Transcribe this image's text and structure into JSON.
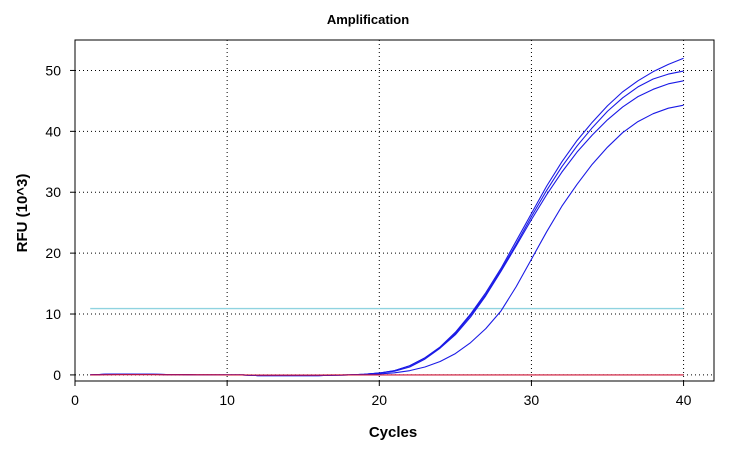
{
  "chart_data": {
    "type": "line",
    "title": "Amplification",
    "xlabel": "Cycles",
    "ylabel": "RFU (10^3)",
    "xlim": [
      0,
      42
    ],
    "ylim": [
      -1,
      55
    ],
    "xticks": [
      0,
      10,
      20,
      30,
      40
    ],
    "yticks": [
      0,
      10,
      20,
      30,
      40,
      50
    ],
    "grid": true,
    "threshold": {
      "value": 10.9,
      "x_range": [
        1,
        40
      ],
      "color": "#8fd3e0"
    },
    "x": [
      1,
      2,
      3,
      4,
      5,
      6,
      7,
      8,
      9,
      10,
      11,
      12,
      13,
      14,
      15,
      16,
      17,
      18,
      19,
      20,
      21,
      22,
      23,
      24,
      25,
      26,
      27,
      28,
      29,
      30,
      31,
      32,
      33,
      34,
      35,
      36,
      37,
      38,
      39,
      40
    ],
    "series": [
      {
        "color": "#1a1ae6",
        "values": [
          0.0,
          0.1,
          0.15,
          0.1,
          0.1,
          0.05,
          0.05,
          0.0,
          0.0,
          0.0,
          0.0,
          -0.1,
          -0.1,
          -0.1,
          -0.1,
          -0.1,
          -0.05,
          0.0,
          0.1,
          0.3,
          0.7,
          1.5,
          2.8,
          4.6,
          7.0,
          10.0,
          13.5,
          17.5,
          22.0,
          26.5,
          31.0,
          35.0,
          38.5,
          41.5,
          44.2,
          46.5,
          48.3,
          49.8,
          51.0,
          52.0
        ]
      },
      {
        "color": "#1a1ae6",
        "values": [
          0.0,
          0.1,
          0.15,
          0.1,
          0.1,
          0.05,
          0.05,
          0.0,
          0.0,
          0.0,
          0.0,
          -0.1,
          -0.1,
          -0.1,
          -0.1,
          -0.1,
          -0.05,
          0.0,
          0.1,
          0.3,
          0.7,
          1.5,
          2.8,
          4.5,
          6.8,
          9.8,
          13.2,
          17.2,
          21.5,
          26.0,
          30.3,
          34.2,
          37.6,
          40.6,
          43.3,
          45.5,
          47.3,
          48.6,
          49.4,
          49.9
        ]
      },
      {
        "color": "#1a1ae6",
        "values": [
          0.0,
          0.1,
          0.15,
          0.1,
          0.1,
          0.05,
          0.05,
          0.0,
          0.0,
          0.0,
          0.0,
          -0.1,
          -0.1,
          -0.1,
          -0.1,
          -0.1,
          -0.05,
          0.0,
          0.1,
          0.3,
          0.6,
          1.3,
          2.6,
          4.4,
          6.6,
          9.5,
          13.0,
          17.0,
          21.2,
          25.5,
          29.6,
          33.3,
          36.6,
          39.4,
          41.9,
          44.0,
          45.7,
          46.9,
          47.8,
          48.3
        ]
      },
      {
        "color": "#1a1ae6",
        "values": [
          0.0,
          0.1,
          0.15,
          0.1,
          0.1,
          0.05,
          0.05,
          0.0,
          0.0,
          0.0,
          0.0,
          -0.1,
          -0.1,
          -0.1,
          -0.1,
          -0.1,
          -0.05,
          0.0,
          0.05,
          0.15,
          0.35,
          0.7,
          1.3,
          2.2,
          3.5,
          5.3,
          7.6,
          10.5,
          14.5,
          19.0,
          23.5,
          27.7,
          31.3,
          34.6,
          37.4,
          39.8,
          41.6,
          42.9,
          43.8,
          44.3
        ]
      },
      {
        "color": "#cc1133",
        "values": [
          0.0,
          0.02,
          0.04,
          0.04,
          0.03,
          0.02,
          0.02,
          0.02,
          0.01,
          0.0,
          0.0,
          -0.02,
          -0.02,
          -0.02,
          -0.02,
          -0.02,
          -0.01,
          0.0,
          0.0,
          0.0,
          0.0,
          0.0,
          0.0,
          0.0,
          0.0,
          0.0,
          0.0,
          0.0,
          0.0,
          0.0,
          0.0,
          0.0,
          0.0,
          0.0,
          0.0,
          0.0,
          0.0,
          0.0,
          0.0,
          0.0
        ]
      }
    ]
  }
}
